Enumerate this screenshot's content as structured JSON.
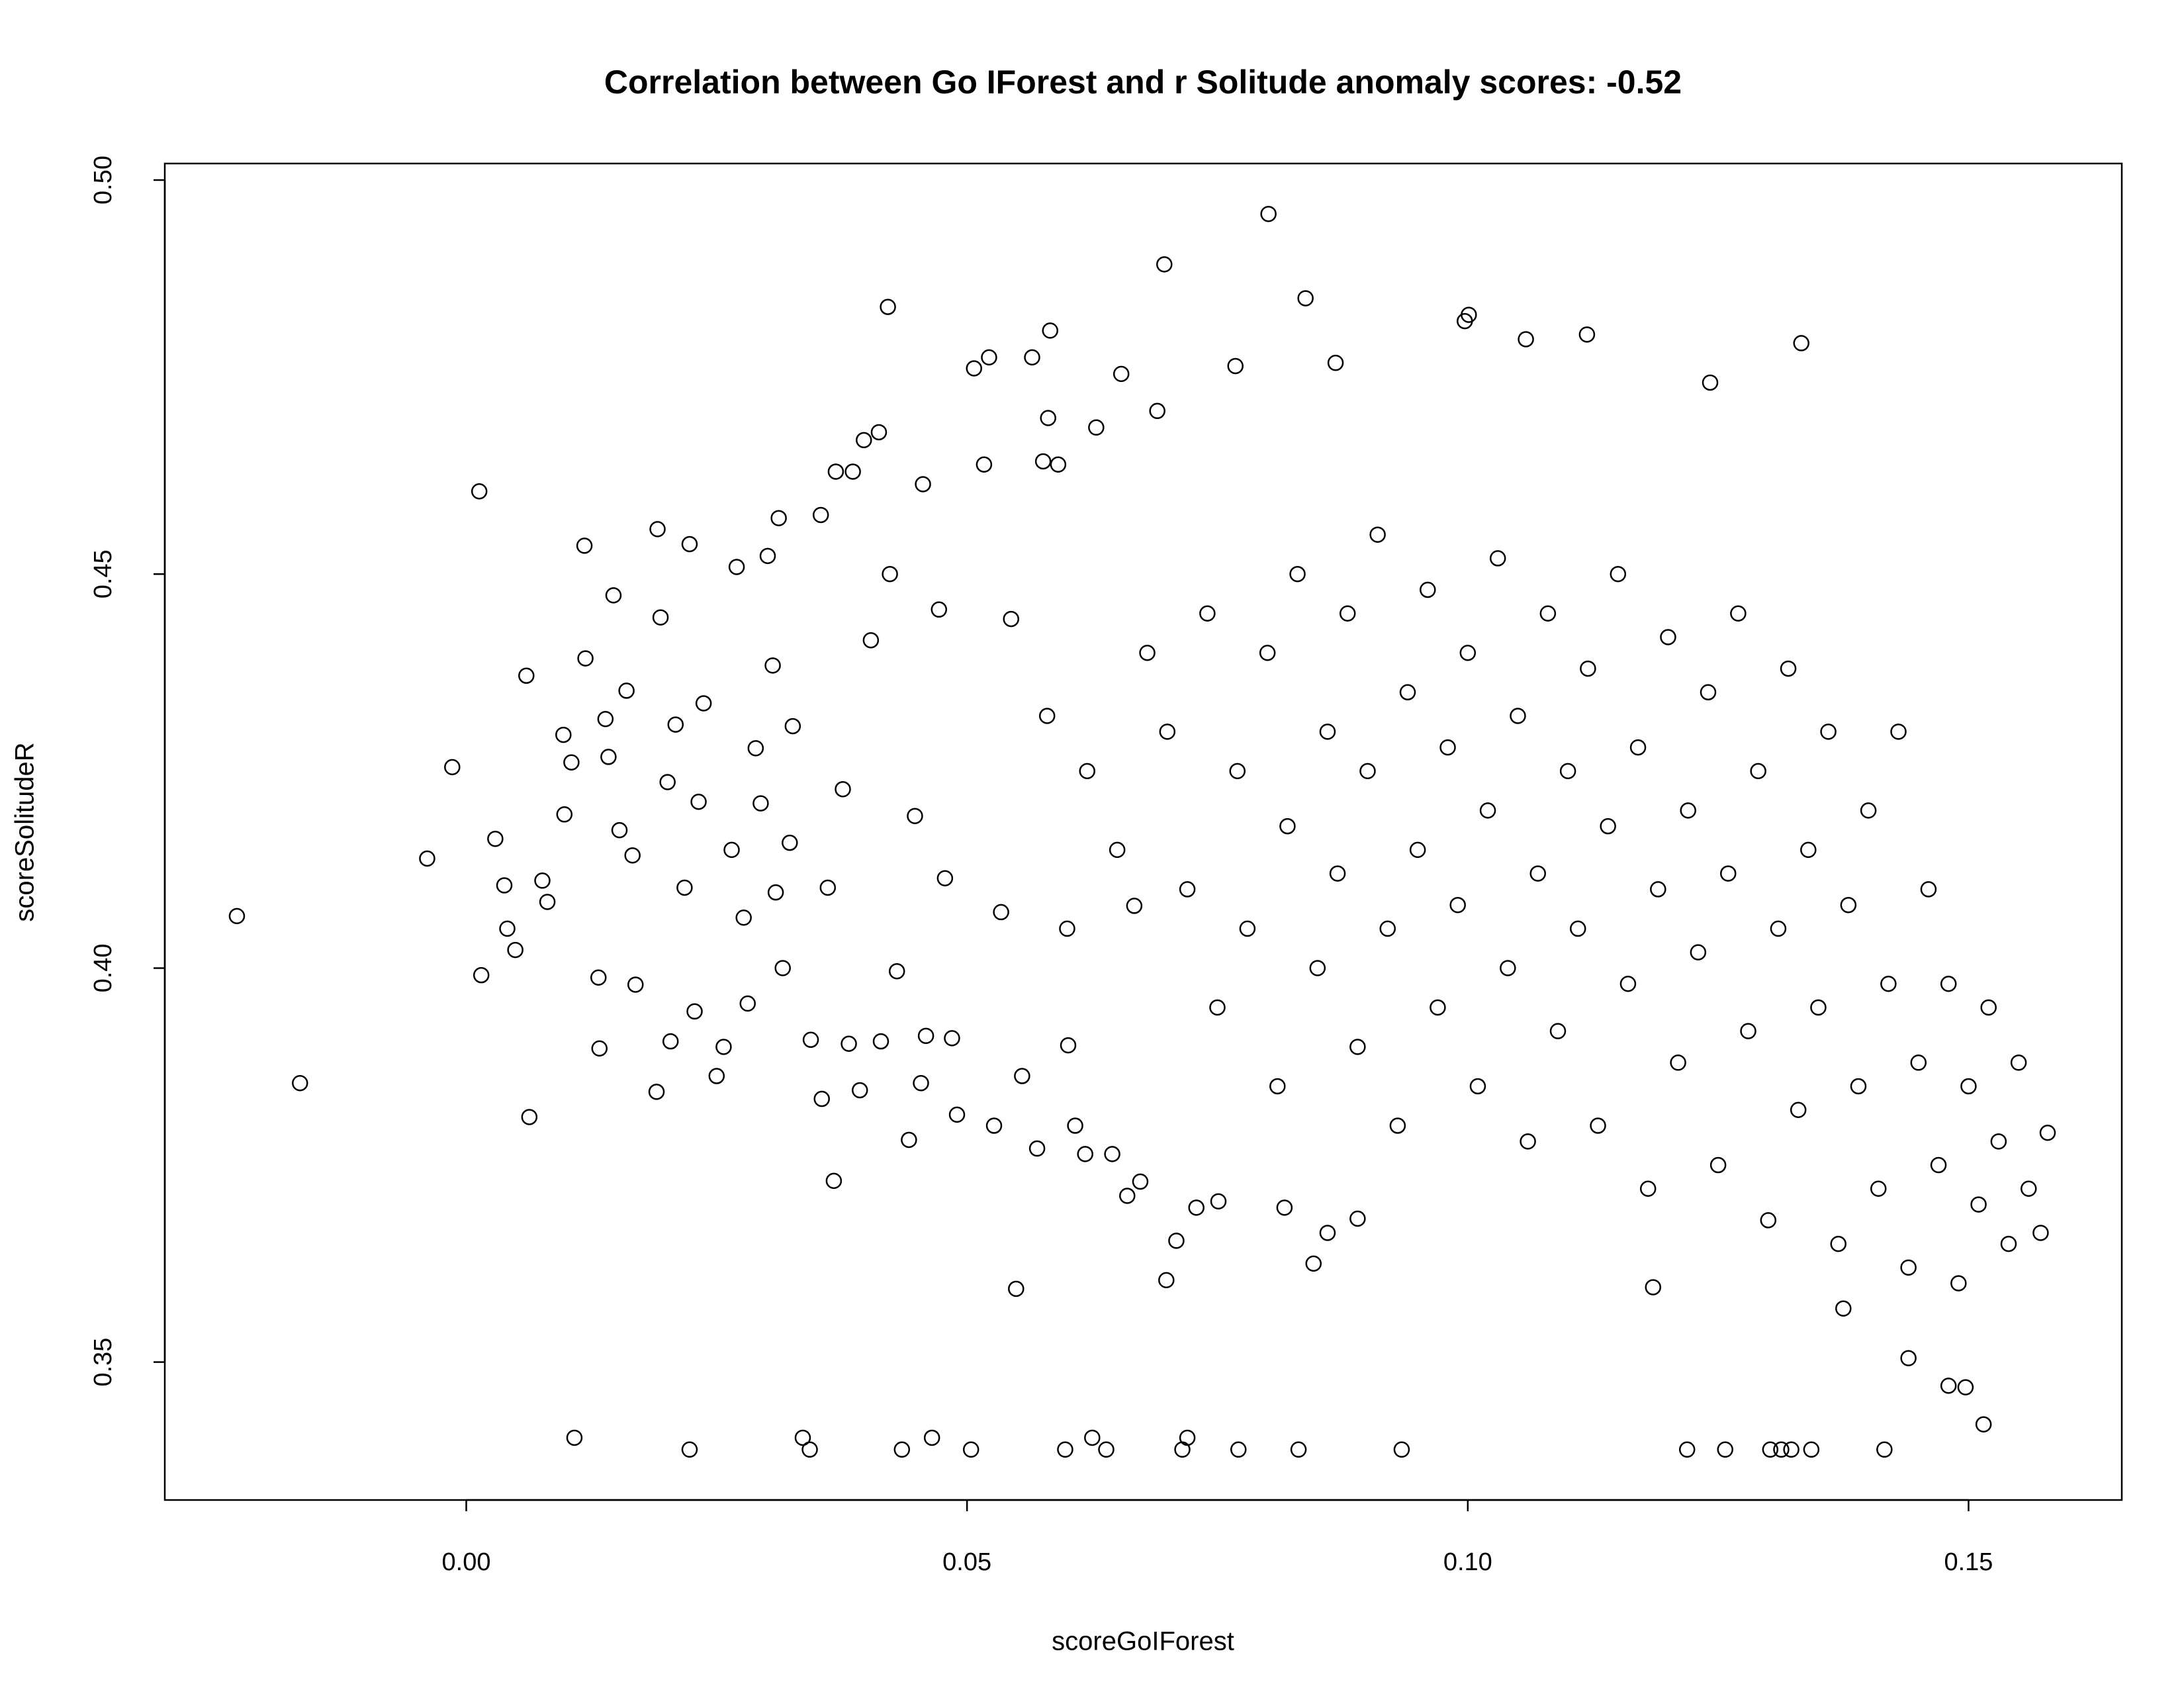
{
  "chart_data": {
    "type": "scatter",
    "title": "Correlation between Go IForest and r Solitude anomaly scores: -0.52",
    "x_label": "scoreGoIForest",
    "y_label": "scoreSolitudeR",
    "color": "#000000",
    "xlim": [
      -0.0301,
      0.1653
    ],
    "ylim": [
      0.3325,
      0.5021
    ],
    "xticks": [
      {
        "value": 0,
        "label": "0.00"
      },
      {
        "value": 0.05,
        "label": "0.05"
      },
      {
        "value": 0.1,
        "label": "0.10"
      },
      {
        "value": 0.15,
        "label": "0.15"
      }
    ],
    "yticks": [
      {
        "value": 0.35,
        "label": "0.35"
      },
      {
        "value": 0.4,
        "label": "0.40"
      },
      {
        "value": 0.45,
        "label": "0.45"
      },
      {
        "value": 0.5,
        "label": "0.50"
      }
    ],
    "x": [
      -0.0229,
      -0.0166,
      -0.0039,
      -0.0014,
      0.0013,
      0.0015,
      0.0029,
      0.0038,
      0.0041,
      0.0049,
      0.006,
      0.0063,
      0.0076,
      0.0081,
      0.0097,
      0.0098,
      0.0105,
      0.0108,
      0.0118,
      0.0119,
      0.0132,
      0.0133,
      0.0139,
      0.0142,
      0.0147,
      0.0153,
      0.016,
      0.0166,
      0.0169,
      0.0191,
      0.019,
      0.0194,
      0.0201,
      0.0204,
      0.0209,
      0.0218,
      0.0223,
      0.0223,
      0.0228,
      0.0232,
      0.0237,
      0.025,
      0.0257,
      0.0265,
      0.027,
      0.0277,
      0.0281,
      0.0289,
      0.0294,
      0.0301,
      0.0306,
      0.0309,
      0.0312,
      0.0316,
      0.0323,
      0.0326,
      0.0336,
      0.0343,
      0.0344,
      0.0354,
      0.0355,
      0.0361,
      0.0367,
      0.0369,
      0.0376,
      0.0382,
      0.0386,
      0.0393,
      0.0397,
      0.0404,
      0.0412,
      0.0414,
      0.0421,
      0.0423,
      0.043,
      0.0435,
      0.0442,
      0.0448,
      0.0454,
      0.0456,
      0.0459,
      0.0465,
      0.0472,
      0.0478,
      0.0485,
      0.049,
      0.0504,
      0.0507,
      0.0517,
      0.0522,
      0.0527,
      0.0534,
      0.0544,
      0.0549,
      0.0555,
      0.0565,
      0.057,
      0.0576,
      0.0581,
      0.0583,
      0.0591,
      0.0598,
      0.0601,
      0.0608,
      0.0618,
      0.0625,
      0.0629,
      0.0639,
      0.0645,
      0.0654,
      0.066,
      0.0667,
      0.0673,
      0.069,
      0.0697,
      0.0699,
      0.0709,
      0.0715,
      0.072,
      0.0729,
      0.0751,
      0.0768,
      0.0771,
      0.0801,
      0.0817,
      0.0831,
      0.0838,
      0.0846,
      0.086,
      0.0868,
      0.089,
      0.0934,
      0.0997,
      0.1001,
      0.1058,
      0.1119,
      0.1185,
      0.1219,
      0.1242,
      0.1257,
      0.1302,
      0.1313,
      0.1323,
      0.1333,
      0.1343,
      0.1375,
      0.1416,
      0.144,
      0.148,
      0.1497,
      0.1515,
      0.1572,
      0.1579,
      0.07,
      0.072,
      0.074,
      0.075,
      0.077,
      0.078,
      0.08,
      0.081,
      0.082,
      0.083,
      0.085,
      0.086,
      0.087,
      0.088,
      0.089,
      0.09,
      0.091,
      0.092,
      0.093,
      0.094,
      0.095,
      0.096,
      0.097,
      0.098,
      0.099,
      0.1,
      0.101,
      0.102,
      0.103,
      0.104,
      0.105,
      0.106,
      0.107,
      0.108,
      0.109,
      0.11,
      0.111,
      0.112,
      0.113,
      0.114,
      0.115,
      0.116,
      0.117,
      0.118,
      0.119,
      0.12,
      0.121,
      0.122,
      0.123,
      0.124,
      0.125,
      0.126,
      0.127,
      0.128,
      0.129,
      0.13,
      0.131,
      0.132,
      0.133,
      0.134,
      0.135,
      0.136,
      0.137,
      0.138,
      0.139,
      0.14,
      0.141,
      0.142,
      0.143,
      0.144,
      0.145,
      0.146,
      0.147,
      0.148,
      0.149,
      0.15,
      0.151,
      0.152,
      0.153,
      0.154,
      0.155,
      0.156,
      0.065,
      0.068,
      0.062,
      0.06,
      0.058
    ],
    "values": [
      0.4066,
      0.3854,
      0.4139,
      0.4255,
      0.4605,
      0.3991,
      0.4164,
      0.4105,
      0.405,
      0.4023,
      0.4371,
      0.3811,
      0.4111,
      0.4084,
      0.4296,
      0.4195,
      0.4261,
      0.3404,
      0.4536,
      0.4393,
      0.3988,
      0.3898,
      0.4316,
      0.4268,
      0.4473,
      0.4175,
      0.4352,
      0.4143,
      0.3979,
      0.4557,
      0.3843,
      0.4445,
      0.4236,
      0.3907,
      0.4309,
      0.4102,
      0.3389,
      0.4538,
      0.3945,
      0.4211,
      0.4336,
      0.3863,
      0.39,
      0.415,
      0.4509,
      0.4064,
      0.3955,
      0.4279,
      0.4209,
      0.4523,
      0.4384,
      0.4096,
      0.4571,
      0.4,
      0.4159,
      0.4307,
      0.3404,
      0.3389,
      0.3909,
      0.4575,
      0.3834,
      0.4102,
      0.373,
      0.463,
      0.4227,
      0.3904,
      0.463,
      0.3845,
      0.467,
      0.4416,
      0.468,
      0.3907,
      0.4839,
      0.45,
      0.3996,
      0.3389,
      0.3782,
      0.4193,
      0.3854,
      0.4614,
      0.3914,
      0.3404,
      0.4455,
      0.4114,
      0.3911,
      0.3814,
      0.3389,
      0.4761,
      0.4639,
      0.4775,
      0.38,
      0.4071,
      0.4443,
      0.3593,
      0.3863,
      0.4775,
      0.3771,
      0.4643,
      0.4698,
      0.4809,
      0.4639,
      0.3389,
      0.3902,
      0.38,
      0.3764,
      0.3404,
      0.4686,
      0.3389,
      0.3764,
      0.4754,
      0.3711,
      0.4079,
      0.3729,
      0.4707,
      0.4893,
      0.3604,
      0.3654,
      0.3389,
      0.3404,
      0.3696,
      0.3704,
      0.4764,
      0.3389,
      0.4957,
      0.3696,
      0.3389,
      0.485,
      0.3625,
      0.3664,
      0.4768,
      0.3682,
      0.3389,
      0.4821,
      0.4829,
      0.4798,
      0.4804,
      0.3595,
      0.3389,
      0.4743,
      0.3389,
      0.3389,
      0.3389,
      0.3389,
      0.4793,
      0.3389,
      0.3568,
      0.3389,
      0.3505,
      0.347,
      0.3468,
      0.3421,
      0.3664,
      0.3791,
      0.43,
      0.41,
      0.445,
      0.395,
      0.425,
      0.405,
      0.44,
      0.385,
      0.418,
      0.45,
      0.4,
      0.43,
      0.412,
      0.445,
      0.39,
      0.425,
      0.455,
      0.405,
      0.38,
      0.435,
      0.415,
      0.448,
      0.395,
      0.428,
      0.408,
      0.44,
      0.385,
      0.42,
      0.452,
      0.4,
      0.432,
      0.378,
      0.412,
      0.445,
      0.392,
      0.425,
      0.405,
      0.438,
      0.38,
      0.418,
      0.45,
      0.398,
      0.428,
      0.372,
      0.41,
      0.442,
      0.388,
      0.42,
      0.402,
      0.435,
      0.375,
      0.412,
      0.445,
      0.392,
      0.425,
      0.368,
      0.405,
      0.438,
      0.382,
      0.415,
      0.395,
      0.43,
      0.365,
      0.408,
      0.385,
      0.42,
      0.372,
      0.398,
      0.43,
      0.362,
      0.388,
      0.41,
      0.375,
      0.398,
      0.36,
      0.385,
      0.37,
      0.395,
      0.378,
      0.365,
      0.388,
      0.372,
      0.415,
      0.44,
      0.425,
      0.405,
      0.432
    ]
  }
}
